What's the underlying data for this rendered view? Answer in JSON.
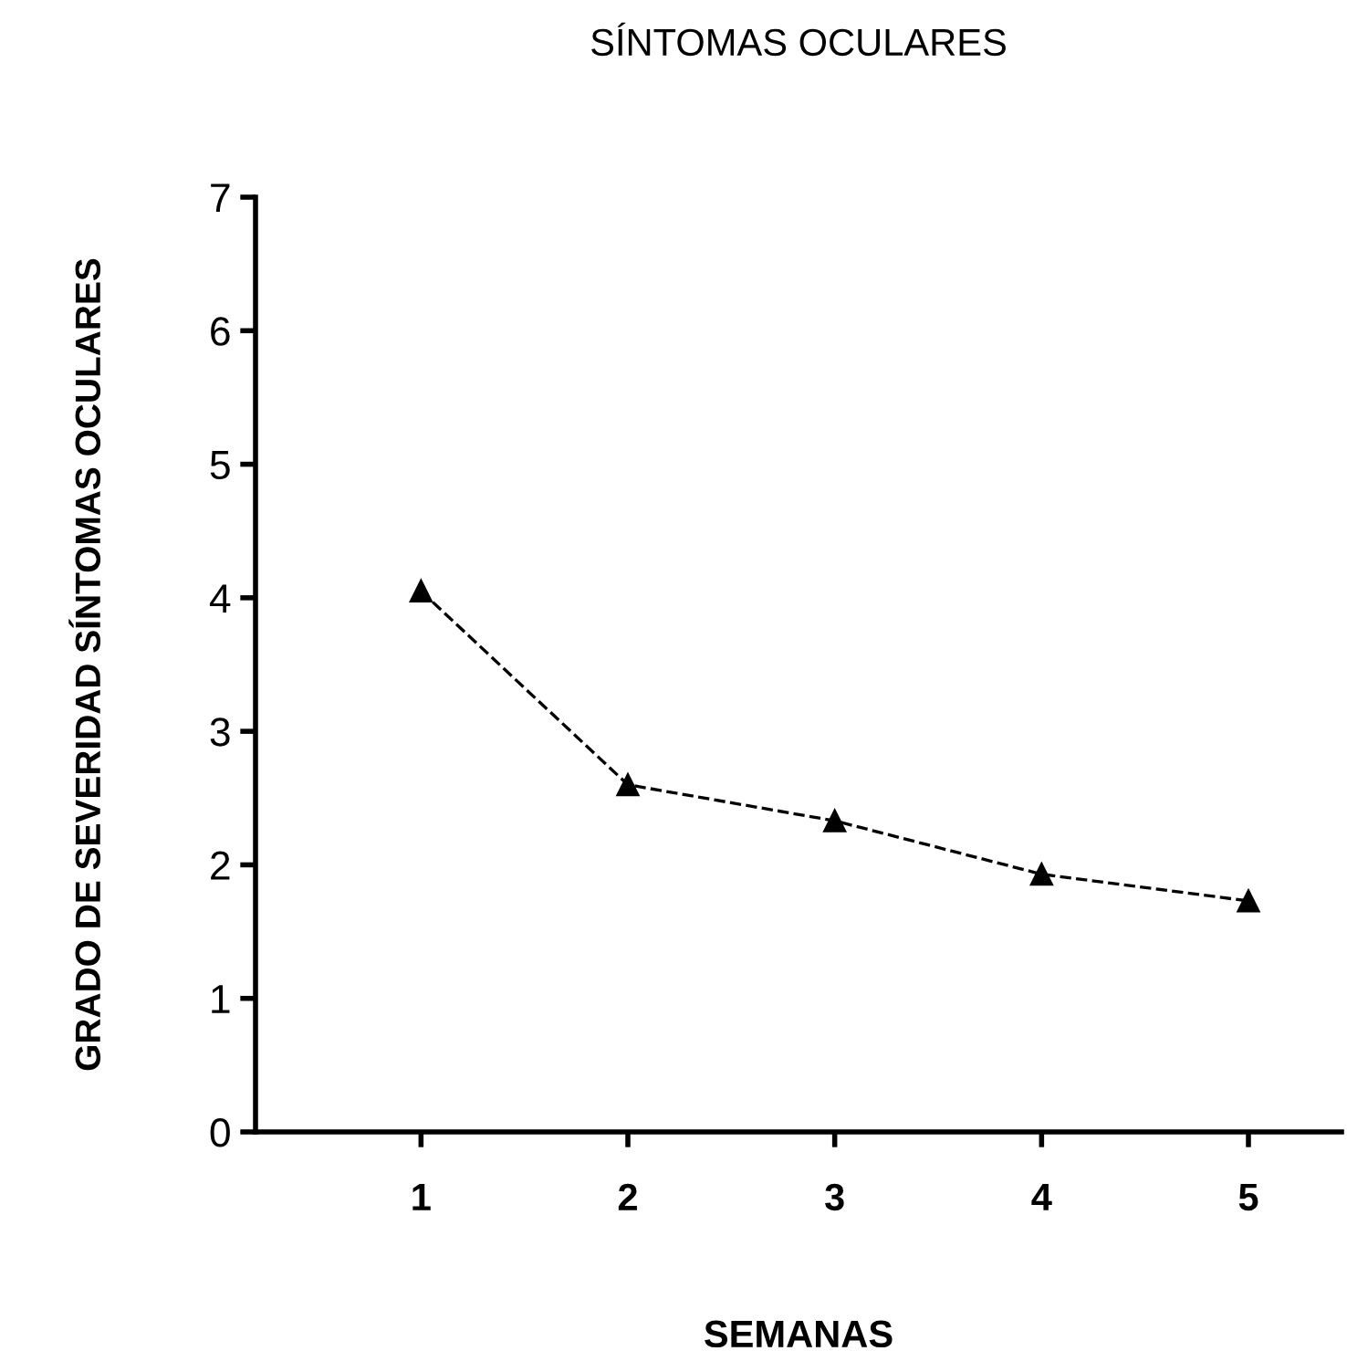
{
  "chart_data": {
    "type": "line",
    "title": "SÍNTOMAS OCULARES",
    "xlabel": "SEMANAS",
    "ylabel": "GRADO DE SEVERIDAD SÍNTOMAS OCULARES",
    "categories": [
      "1",
      "2",
      "3",
      "4",
      "5"
    ],
    "series": [
      {
        "color": "#000000",
        "values": [
          4.05,
          2.6,
          2.33,
          1.93,
          1.73
        ]
      }
    ],
    "ylim": [
      0,
      7
    ],
    "yticks": [
      0,
      1,
      2,
      3,
      4,
      5,
      6,
      7
    ],
    "marker": "triangle",
    "line_style": "dashed",
    "grid": false,
    "legend": false
  }
}
